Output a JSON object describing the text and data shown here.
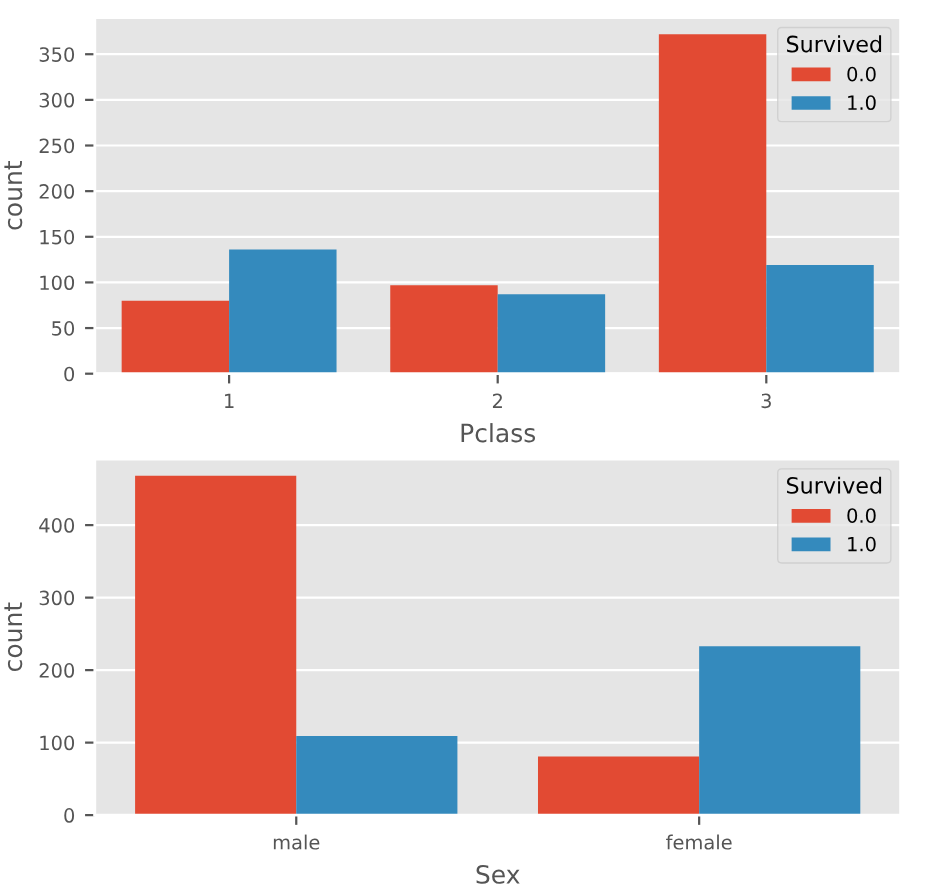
{
  "chart_data": [
    {
      "type": "bar",
      "xlabel": "Pclass",
      "ylabel": "count",
      "categories": [
        "1",
        "2",
        "3"
      ],
      "series": [
        {
          "name": "0.0",
          "color": "#e24a33",
          "values": [
            80,
            97,
            372
          ]
        },
        {
          "name": "1.0",
          "color": "#348abd",
          "values": [
            136,
            87,
            119
          ]
        }
      ],
      "ylim": [
        0,
        390
      ],
      "yticks": [
        0,
        50,
        100,
        150,
        200,
        250,
        300,
        350
      ],
      "grid": "y",
      "legend": "top right",
      "legend_title": "Survived"
    },
    {
      "type": "bar",
      "xlabel": "Sex",
      "ylabel": "count",
      "categories": [
        "male",
        "female"
      ],
      "series": [
        {
          "name": "0.0",
          "color": "#e24a33",
          "values": [
            468,
            81
          ]
        },
        {
          "name": "1.0",
          "color": "#348abd",
          "values": [
            109,
            233
          ]
        }
      ],
      "ylim": [
        0,
        491
      ],
      "yticks": [
        0,
        100,
        200,
        300,
        400
      ],
      "grid": "y",
      "legend": "top right",
      "legend_title": "Survived"
    }
  ]
}
